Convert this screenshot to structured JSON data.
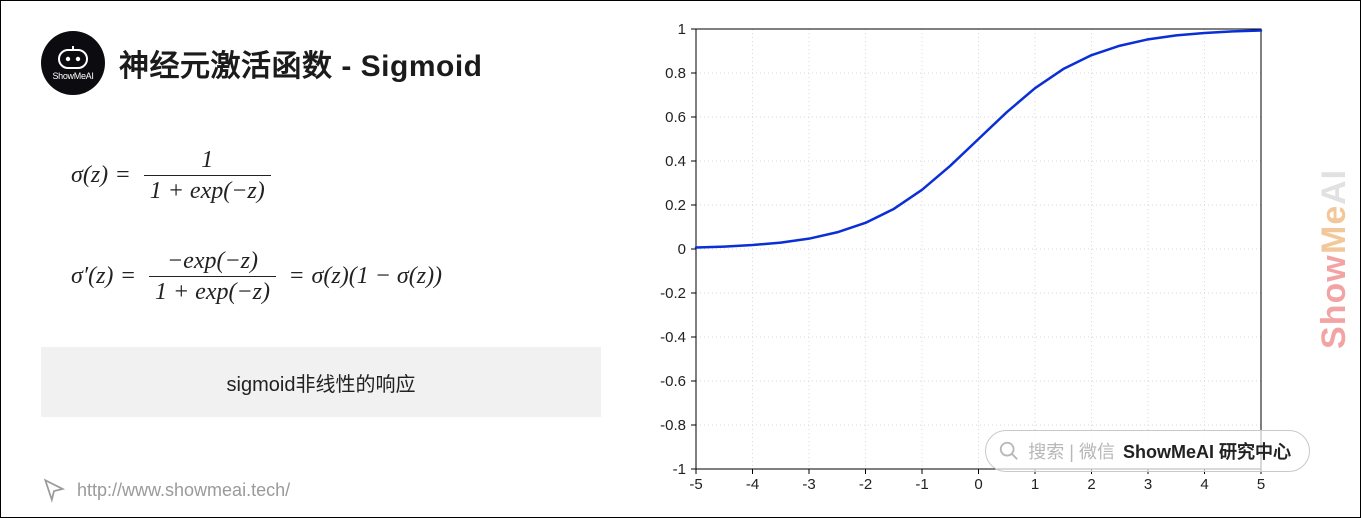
{
  "logo": {
    "subtext": "ShowMeAI"
  },
  "title": "神经元激活函数 - Sigmoid",
  "equations": {
    "eq1": {
      "lhs": "σ(z)",
      "num": "1",
      "den": "1 + exp(−z)"
    },
    "eq2": {
      "lhs": "σ′(z)",
      "num": "−exp(−z)",
      "den": "1 + exp(−z)",
      "rhs": "σ(z)(1 − σ(z))"
    }
  },
  "caption": "sigmoid非线性的响应",
  "footer_url": "http://www.showmeai.tech/",
  "watermark": "ShowMeAI",
  "search_pill": {
    "hint": "搜索 | 微信",
    "strong": "ShowMeAI 研究中心"
  },
  "chart": {
    "type": "line",
    "xlim": [
      -5,
      5
    ],
    "ylim": [
      -1,
      1
    ],
    "xticks": [
      -5,
      -4,
      -3,
      -2,
      -1,
      0,
      1,
      2,
      3,
      4,
      5
    ],
    "yticks": [
      -1,
      -0.8,
      -0.6,
      -0.4,
      -0.2,
      0,
      0.2,
      0.4,
      0.6,
      0.8,
      1
    ],
    "line_color": "#0a2fd6",
    "line_width": 2.5,
    "grid_color": "#d9d9d9",
    "box_color": "#000000",
    "background_color": "#ffffff",
    "tick_fontsize": 15,
    "data_x": [
      -5,
      -4.5,
      -4,
      -3.5,
      -3,
      -2.5,
      -2,
      -1.5,
      -1,
      -0.5,
      0,
      0.5,
      1,
      1.5,
      2,
      2.5,
      3,
      3.5,
      4,
      4.5,
      5
    ],
    "data_y": [
      0.0067,
      0.011,
      0.018,
      0.029,
      0.047,
      0.076,
      0.119,
      0.182,
      0.269,
      0.378,
      0.5,
      0.622,
      0.731,
      0.818,
      0.881,
      0.924,
      0.953,
      0.971,
      0.982,
      0.989,
      0.993
    ]
  }
}
